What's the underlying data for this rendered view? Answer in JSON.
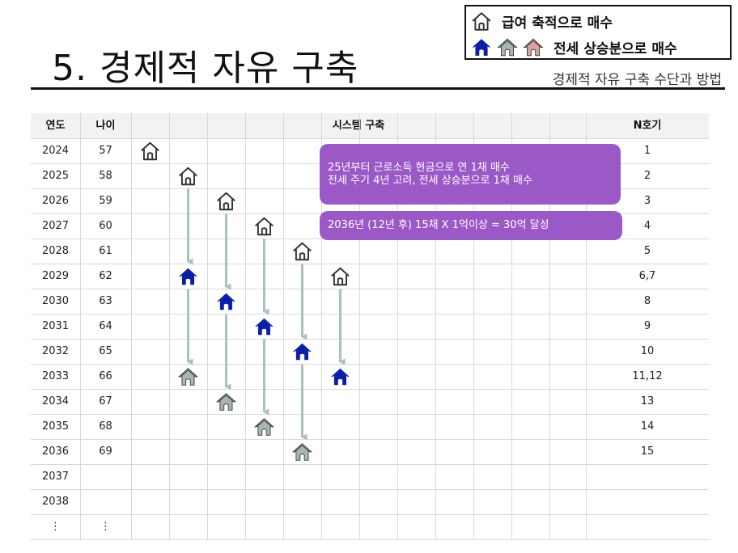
{
  "header": {
    "title": "5. 경제적 자유 구축",
    "subtitle": "경제적 자유 구축 수단과 방법"
  },
  "legend": {
    "item1_label": "급여 축적으로 매수",
    "item2_label": "전세 상승분으로 매수",
    "icon1": "house-outline-icon",
    "icon2": [
      "house-blue-icon",
      "house-gray-icon",
      "house-pink-icon"
    ]
  },
  "colors": {
    "outline": "#333333",
    "blue_house": "#0a1fa8",
    "gray_house": "#a7b5b3",
    "pink_house": "#d9a3a3",
    "arrow": "#a9c2c0",
    "callout": "#9b59c8",
    "header_bg": "#f2f2f2"
  },
  "table": {
    "headers": {
      "year": "연도",
      "age": "나이",
      "system": "시스템 구축",
      "count": "N호기"
    },
    "rows": [
      {
        "year": "2024",
        "age": "57",
        "count": "1"
      },
      {
        "year": "2025",
        "age": "58",
        "count": "2"
      },
      {
        "year": "2026",
        "age": "59",
        "count": "3"
      },
      {
        "year": "2027",
        "age": "60",
        "count": "4"
      },
      {
        "year": "2028",
        "age": "61",
        "count": "5"
      },
      {
        "year": "2029",
        "age": "62",
        "count": "6,7"
      },
      {
        "year": "2030",
        "age": "63",
        "count": "8"
      },
      {
        "year": "2031",
        "age": "64",
        "count": "9"
      },
      {
        "year": "2032",
        "age": "65",
        "count": "10"
      },
      {
        "year": "2033",
        "age": "66",
        "count": "11,12"
      },
      {
        "year": "2034",
        "age": "67",
        "count": "13"
      },
      {
        "year": "2035",
        "age": "68",
        "count": "14"
      },
      {
        "year": "2036",
        "age": "69",
        "count": "15"
      },
      {
        "year": "2037",
        "age": "",
        "count": ""
      },
      {
        "year": "2038",
        "age": "",
        "count": ""
      },
      {
        "year": "⋮",
        "age": "⋮",
        "count": ""
      }
    ]
  },
  "callouts": {
    "plan_line1": "25년부터 근로소득 현금으로 연 1채 매수",
    "plan_line2": "전세 주기 4년 고려, 전세 상승분으로 1채 매수",
    "goal": "2036년 (12년 후) 15채 X 1억이상 = 30억 달성"
  },
  "houses": [
    {
      "row": 0,
      "col": 0,
      "type": "outline"
    },
    {
      "row": 1,
      "col": 1,
      "type": "outline"
    },
    {
      "row": 2,
      "col": 2,
      "type": "outline"
    },
    {
      "row": 3,
      "col": 3,
      "type": "outline"
    },
    {
      "row": 4,
      "col": 4,
      "type": "outline"
    },
    {
      "row": 5,
      "col": 5,
      "type": "outline"
    },
    {
      "row": 5,
      "col": 1,
      "type": "blue"
    },
    {
      "row": 6,
      "col": 2,
      "type": "blue"
    },
    {
      "row": 7,
      "col": 3,
      "type": "blue"
    },
    {
      "row": 8,
      "col": 4,
      "type": "blue"
    },
    {
      "row": 9,
      "col": 5,
      "type": "blue"
    },
    {
      "row": 9,
      "col": 1,
      "type": "gray"
    },
    {
      "row": 10,
      "col": 2,
      "type": "gray"
    },
    {
      "row": 11,
      "col": 3,
      "type": "gray"
    },
    {
      "row": 12,
      "col": 4,
      "type": "gray"
    }
  ],
  "arrows": [
    {
      "col": 1,
      "from_row": 1,
      "to_row": 5
    },
    {
      "col": 1,
      "from_row": 5,
      "to_row": 9
    },
    {
      "col": 2,
      "from_row": 2,
      "to_row": 6
    },
    {
      "col": 2,
      "from_row": 6,
      "to_row": 10
    },
    {
      "col": 3,
      "from_row": 3,
      "to_row": 7
    },
    {
      "col": 3,
      "from_row": 7,
      "to_row": 11
    },
    {
      "col": 4,
      "from_row": 4,
      "to_row": 8
    },
    {
      "col": 4,
      "from_row": 8,
      "to_row": 12
    },
    {
      "col": 5,
      "from_row": 5,
      "to_row": 9
    }
  ]
}
